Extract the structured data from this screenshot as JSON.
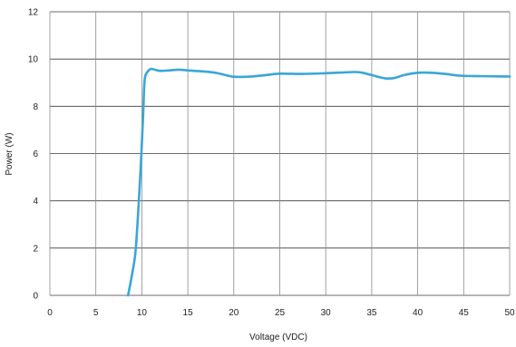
{
  "chart_data": {
    "type": "line",
    "xlabel": "Voltage (VDC)",
    "ylabel": "Power (W)",
    "xlim": [
      0,
      50
    ],
    "ylim": [
      0,
      12
    ],
    "xticks": [
      0,
      5,
      10,
      15,
      20,
      25,
      30,
      35,
      40,
      45,
      50
    ],
    "yticks": [
      0,
      2,
      4,
      6,
      8,
      10,
      12
    ],
    "grid": true,
    "line_color": "#3aa6d8",
    "series": [
      {
        "x": [
          8.5,
          8.9,
          9.3,
          9.6,
          9.9,
          10.15,
          10.3,
          10.6,
          11.0,
          11.4,
          12.0,
          13.0,
          14.0,
          15.0,
          16.5,
          18.0,
          19.0,
          20.0,
          21.5,
          23.0,
          25.0,
          27.5,
          30.0,
          33.0,
          34.0,
          35.0,
          36.5,
          37.5,
          38.5,
          40.0,
          41.5,
          43.0,
          44.5,
          46.0,
          48.0,
          50.0
        ],
        "y": [
          0,
          0.8,
          1.8,
          3.5,
          5.6,
          7.7,
          9.1,
          9.45,
          9.58,
          9.55,
          9.5,
          9.52,
          9.55,
          9.52,
          9.48,
          9.42,
          9.33,
          9.25,
          9.25,
          9.3,
          9.38,
          9.37,
          9.4,
          9.45,
          9.42,
          9.32,
          9.18,
          9.2,
          9.32,
          9.42,
          9.42,
          9.37,
          9.3,
          9.28,
          9.27,
          9.26
        ]
      }
    ]
  }
}
